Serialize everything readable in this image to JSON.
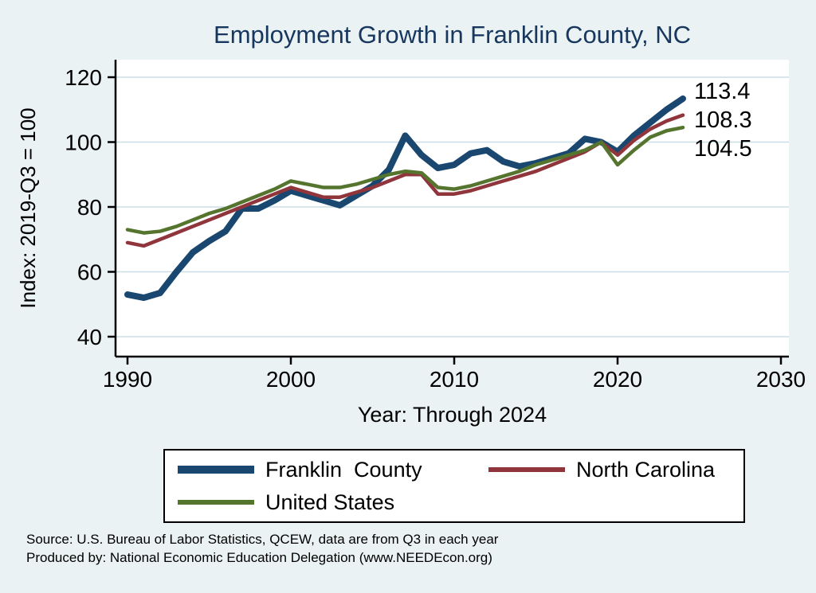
{
  "title": "Employment Growth in Franklin County, NC",
  "colors": {
    "background": "#eaf2f3",
    "plot_background": "#ffffff",
    "grid": "#cbdee6",
    "axis": "#000000",
    "title": "#17375e"
  },
  "chart_data": {
    "type": "line",
    "title": "Employment Growth in Franklin County, NC",
    "xlabel": "Year: Through 2024",
    "ylabel": "Index: 2019-Q3 = 100",
    "xlim": [
      1990,
      2030
    ],
    "ylim": [
      40,
      120
    ],
    "x_ticks": [
      1990,
      2000,
      2010,
      2020,
      2030
    ],
    "y_ticks": [
      40,
      60,
      80,
      100,
      120
    ],
    "grid": true,
    "legend_position": "bottom",
    "x": [
      1990,
      1991,
      1992,
      1993,
      1994,
      1995,
      1996,
      1997,
      1998,
      1999,
      2000,
      2001,
      2002,
      2003,
      2004,
      2005,
      2006,
      2007,
      2008,
      2009,
      2010,
      2011,
      2012,
      2013,
      2014,
      2015,
      2016,
      2017,
      2018,
      2019,
      2020,
      2021,
      2022,
      2023,
      2024
    ],
    "series": [
      {
        "name": "Franklin  County",
        "color": "#1a476f",
        "line_width": 8,
        "end_label": "113.4",
        "values": [
          53,
          52,
          53.5,
          60,
          66,
          69.5,
          72.5,
          79.5,
          79.5,
          82,
          85,
          83.5,
          82,
          80.5,
          83.5,
          86.5,
          91.5,
          102,
          96,
          92,
          93,
          96.5,
          97.5,
          94,
          92.5,
          93.5,
          95,
          96.5,
          101,
          100,
          97,
          102,
          106,
          110,
          113.4
        ]
      },
      {
        "name": "North Carolina",
        "color": "#90353b",
        "line_width": 4.5,
        "end_label": "108.3",
        "values": [
          69,
          68,
          70,
          72,
          74,
          76,
          78,
          80,
          82,
          84,
          86,
          84.5,
          83,
          83,
          84.5,
          86,
          88,
          90,
          90,
          84,
          84,
          85,
          86.5,
          88,
          89.5,
          91,
          93,
          95,
          97,
          100,
          96,
          100.5,
          104,
          106.5,
          108.3
        ]
      },
      {
        "name": "United States",
        "color": "#55752f",
        "line_width": 4.5,
        "end_label": "104.5",
        "values": [
          73,
          72,
          72.5,
          74,
          76,
          78,
          79.5,
          81.5,
          83.5,
          85.5,
          88,
          87,
          86,
          86,
          87,
          88.5,
          90,
          91,
          90.5,
          86,
          85.5,
          86.5,
          88,
          89.5,
          91,
          93,
          94.5,
          96,
          97.5,
          100,
          93,
          97.5,
          101.5,
          103.5,
          104.5
        ]
      }
    ]
  },
  "notes": [
    "Source: U.S. Bureau of Labor Statistics, QCEW, data are from Q3 in each year",
    "Produced by: National Economic Education Delegation (www.NEEDEcon.org)"
  ]
}
